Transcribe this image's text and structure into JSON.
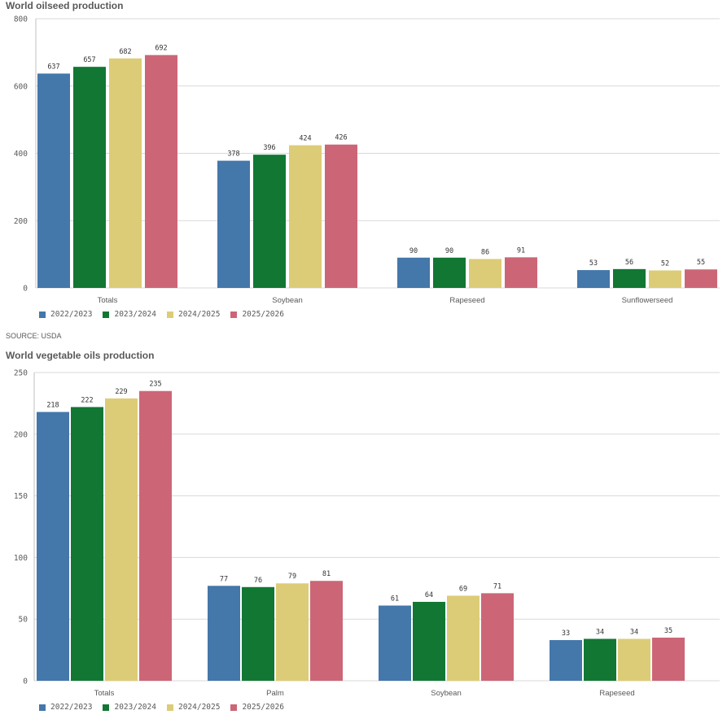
{
  "source_note": "SOURCE: USDA",
  "legend_series": [
    "2022/2023",
    "2023/2024",
    "2024/2025",
    "2025/2026"
  ],
  "colors": [
    "#4477aa",
    "#117733",
    "#ddcc77",
    "#cc6677"
  ],
  "chart_data": [
    {
      "type": "bar",
      "title": "World oilseed production",
      "categories": [
        "Totals",
        "Soybean",
        "Rapeseed",
        "Sunflowerseed"
      ],
      "series": [
        {
          "name": "2022/2023",
          "values": [
            637,
            378,
            90,
            53
          ]
        },
        {
          "name": "2023/2024",
          "values": [
            657,
            396,
            90,
            56
          ]
        },
        {
          "name": "2024/2025",
          "values": [
            682,
            424,
            86,
            52
          ]
        },
        {
          "name": "2025/2026",
          "values": [
            692,
            426,
            91,
            55
          ]
        }
      ],
      "ylim": [
        0,
        800
      ],
      "yticks": [
        0,
        200,
        400,
        600,
        800
      ],
      "xlabel": "",
      "ylabel": "",
      "grid": true,
      "legend": "bottom-left"
    },
    {
      "type": "bar",
      "title": "World vegetable oils production",
      "categories": [
        "Totals",
        "Palm",
        "Soybean",
        "Rapeseed"
      ],
      "series": [
        {
          "name": "2022/2023",
          "values": [
            218,
            77,
            61,
            33
          ]
        },
        {
          "name": "2023/2024",
          "values": [
            222,
            76,
            64,
            34
          ]
        },
        {
          "name": "2024/2025",
          "values": [
            229,
            79,
            69,
            34
          ]
        },
        {
          "name": "2025/2026",
          "values": [
            235,
            81,
            71,
            35
          ]
        }
      ],
      "ylim": [
        0,
        250
      ],
      "yticks": [
        0,
        50,
        100,
        150,
        200,
        250
      ],
      "xlabel": "",
      "ylabel": "",
      "grid": true,
      "legend": "bottom-left"
    }
  ]
}
